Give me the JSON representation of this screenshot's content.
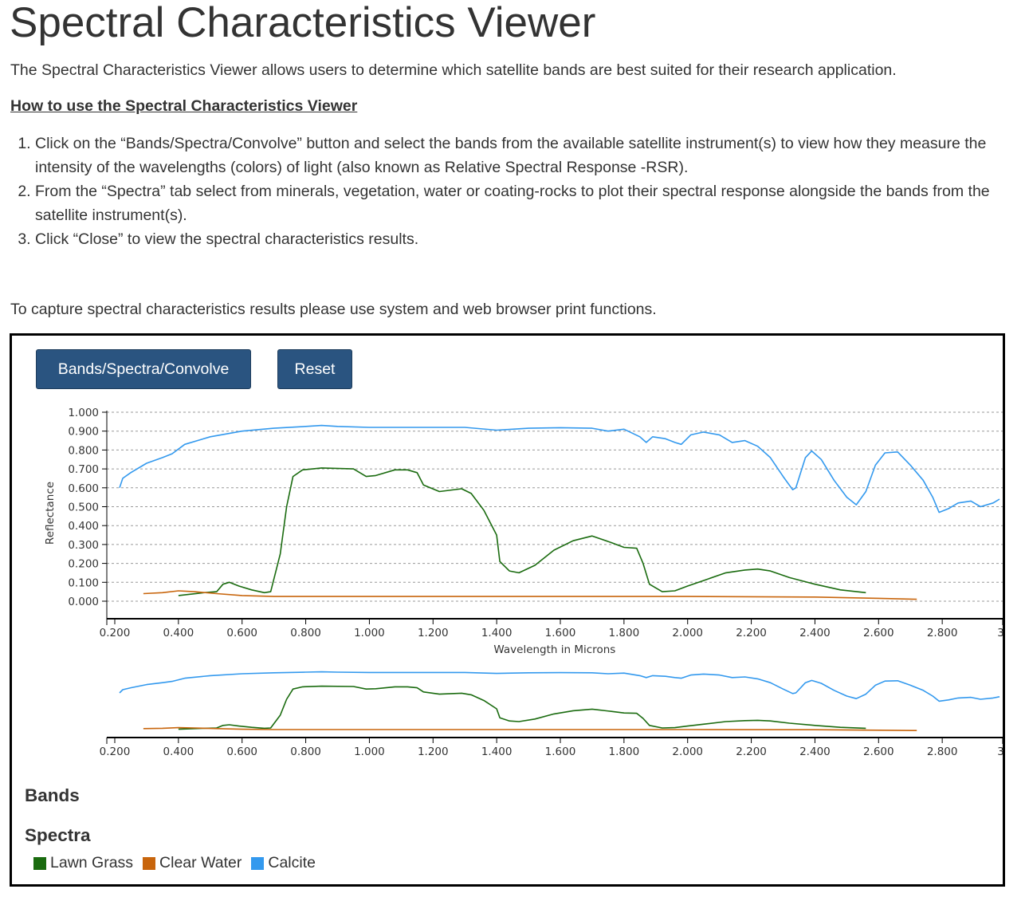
{
  "page": {
    "title": "Spectral Characteristics Viewer",
    "intro": "The Spectral Characteristics Viewer allows users to determine which satellite bands are best suited for their research application.",
    "howto_heading": "How to use the Spectral Characteristics Viewer",
    "steps": [
      "Click on the “Bands/Spectra/Convolve” button and select the bands from the available satellite instrument(s) to view how they measure the intensity of the wavelengths (colors) of light (also known as Relative Spectral Response -RSR).",
      "From the “Spectra” tab select from minerals, vegetation, water or coating-rocks to plot their spectral response alongside the bands from the satellite instrument(s).",
      "Click “Close” to view the spectral characteristics results."
    ],
    "capture_note": "To capture spectral characteristics results please use system and web browser print functions."
  },
  "toolbar": {
    "bands_button": "Bands/Spectra/Convolve",
    "reset_button": "Reset",
    "button_color": "#2a5480"
  },
  "sections": {
    "bands_heading": "Bands",
    "spectra_heading": "Spectra"
  },
  "legend": [
    {
      "label": "Lawn Grass",
      "color": "#1a6b0f"
    },
    {
      "label": "Clear Water",
      "color": "#c8650c"
    },
    {
      "label": "Calcite",
      "color": "#3399ee"
    }
  ],
  "chart_data": {
    "type": "line",
    "xlabel": "Wavelength in Microns",
    "ylabel": "Reflectance",
    "xlim": [
      0.2,
      3.0
    ],
    "ylim": [
      0.0,
      1.0
    ],
    "x_ticks": [
      "0.200",
      "0.400",
      "0.600",
      "0.800",
      "1.000",
      "1.200",
      "1.400",
      "1.600",
      "1.800",
      "2.000",
      "2.200",
      "2.400",
      "2.600",
      "2.800",
      "3.0"
    ],
    "y_ticks": [
      "0.000",
      "0.100",
      "0.200",
      "0.300",
      "0.400",
      "0.500",
      "0.600",
      "0.700",
      "0.800",
      "0.900",
      "1.000"
    ],
    "grid": "horizontal dashed",
    "series": [
      {
        "name": "Calcite",
        "color": "#3399ee",
        "points": [
          [
            0.215,
            0.6
          ],
          [
            0.225,
            0.65
          ],
          [
            0.25,
            0.68
          ],
          [
            0.3,
            0.73
          ],
          [
            0.35,
            0.76
          ],
          [
            0.38,
            0.78
          ],
          [
            0.42,
            0.83
          ],
          [
            0.5,
            0.87
          ],
          [
            0.6,
            0.9
          ],
          [
            0.7,
            0.915
          ],
          [
            0.8,
            0.925
          ],
          [
            0.85,
            0.93
          ],
          [
            0.9,
            0.925
          ],
          [
            1.0,
            0.92
          ],
          [
            1.2,
            0.92
          ],
          [
            1.3,
            0.92
          ],
          [
            1.4,
            0.905
          ],
          [
            1.5,
            0.915
          ],
          [
            1.6,
            0.918
          ],
          [
            1.7,
            0.915
          ],
          [
            1.75,
            0.9
          ],
          [
            1.8,
            0.91
          ],
          [
            1.85,
            0.87
          ],
          [
            1.87,
            0.84
          ],
          [
            1.89,
            0.87
          ],
          [
            1.93,
            0.86
          ],
          [
            1.96,
            0.84
          ],
          [
            1.98,
            0.83
          ],
          [
            2.01,
            0.88
          ],
          [
            2.05,
            0.895
          ],
          [
            2.1,
            0.88
          ],
          [
            2.14,
            0.84
          ],
          [
            2.18,
            0.85
          ],
          [
            2.22,
            0.82
          ],
          [
            2.26,
            0.76
          ],
          [
            2.3,
            0.66
          ],
          [
            2.33,
            0.59
          ],
          [
            2.34,
            0.6
          ],
          [
            2.37,
            0.76
          ],
          [
            2.39,
            0.795
          ],
          [
            2.42,
            0.75
          ],
          [
            2.46,
            0.64
          ],
          [
            2.5,
            0.55
          ],
          [
            2.53,
            0.51
          ],
          [
            2.56,
            0.58
          ],
          [
            2.59,
            0.72
          ],
          [
            2.62,
            0.785
          ],
          [
            2.66,
            0.79
          ],
          [
            2.7,
            0.72
          ],
          [
            2.74,
            0.64
          ],
          [
            2.77,
            0.55
          ],
          [
            2.79,
            0.47
          ],
          [
            2.82,
            0.49
          ],
          [
            2.85,
            0.52
          ],
          [
            2.89,
            0.53
          ],
          [
            2.92,
            0.5
          ],
          [
            2.96,
            0.52
          ],
          [
            2.98,
            0.54
          ]
        ]
      },
      {
        "name": "Lawn Grass",
        "color": "#1a6b0f",
        "points": [
          [
            0.4,
            0.03
          ],
          [
            0.48,
            0.045
          ],
          [
            0.52,
            0.05
          ],
          [
            0.54,
            0.09
          ],
          [
            0.56,
            0.1
          ],
          [
            0.59,
            0.08
          ],
          [
            0.63,
            0.06
          ],
          [
            0.67,
            0.045
          ],
          [
            0.69,
            0.05
          ],
          [
            0.72,
            0.25
          ],
          [
            0.74,
            0.5
          ],
          [
            0.76,
            0.66
          ],
          [
            0.79,
            0.695
          ],
          [
            0.85,
            0.705
          ],
          [
            0.95,
            0.7
          ],
          [
            0.99,
            0.66
          ],
          [
            1.02,
            0.665
          ],
          [
            1.08,
            0.695
          ],
          [
            1.12,
            0.695
          ],
          [
            1.15,
            0.68
          ],
          [
            1.17,
            0.615
          ],
          [
            1.22,
            0.58
          ],
          [
            1.29,
            0.595
          ],
          [
            1.32,
            0.57
          ],
          [
            1.36,
            0.48
          ],
          [
            1.4,
            0.35
          ],
          [
            1.41,
            0.21
          ],
          [
            1.44,
            0.16
          ],
          [
            1.47,
            0.15
          ],
          [
            1.52,
            0.19
          ],
          [
            1.58,
            0.27
          ],
          [
            1.64,
            0.32
          ],
          [
            1.7,
            0.345
          ],
          [
            1.76,
            0.31
          ],
          [
            1.8,
            0.285
          ],
          [
            1.84,
            0.28
          ],
          [
            1.86,
            0.2
          ],
          [
            1.88,
            0.09
          ],
          [
            1.92,
            0.05
          ],
          [
            1.96,
            0.055
          ],
          [
            2.0,
            0.08
          ],
          [
            2.06,
            0.115
          ],
          [
            2.12,
            0.15
          ],
          [
            2.18,
            0.165
          ],
          [
            2.22,
            0.17
          ],
          [
            2.26,
            0.16
          ],
          [
            2.32,
            0.125
          ],
          [
            2.4,
            0.09
          ],
          [
            2.48,
            0.06
          ],
          [
            2.56,
            0.045
          ]
        ]
      },
      {
        "name": "Clear Water",
        "color": "#c8650c",
        "points": [
          [
            0.29,
            0.04
          ],
          [
            0.35,
            0.045
          ],
          [
            0.4,
            0.055
          ],
          [
            0.45,
            0.05
          ],
          [
            0.52,
            0.04
          ],
          [
            0.6,
            0.03
          ],
          [
            0.7,
            0.025
          ],
          [
            0.8,
            0.025
          ],
          [
            1.0,
            0.025
          ],
          [
            1.5,
            0.025
          ],
          [
            2.0,
            0.025
          ],
          [
            2.4,
            0.022
          ],
          [
            2.6,
            0.015
          ],
          [
            2.72,
            0.01
          ]
        ]
      }
    ]
  }
}
